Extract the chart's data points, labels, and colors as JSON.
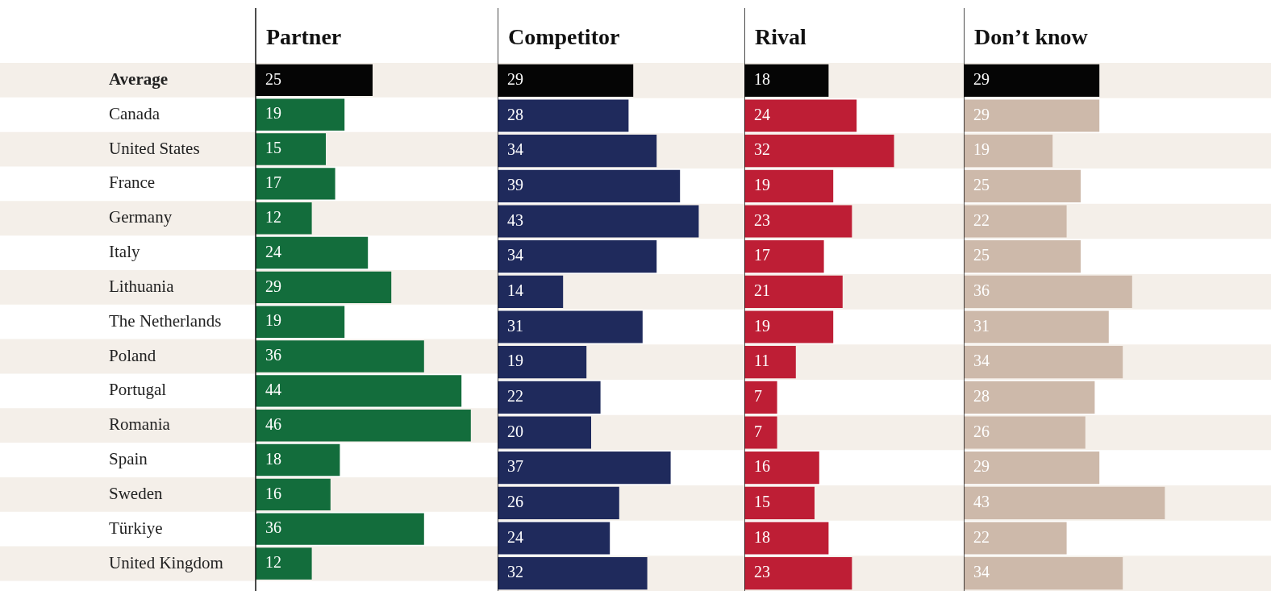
{
  "chart_data": [
    {
      "type": "bar",
      "orientation": "horizontal",
      "title": "Partner",
      "tick_labels": "y",
      "data_labels": true,
      "categories": [
        "Average",
        "Canada",
        "United States",
        "France",
        "Germany",
        "Italy",
        "Lithuania",
        "The Netherlands",
        "Poland",
        "Portugal",
        "Romania",
        "Spain",
        "Sweden",
        "Türkiye",
        "United Kingdom"
      ],
      "values": [
        25,
        19,
        15,
        17,
        12,
        24,
        29,
        19,
        36,
        44,
        46,
        18,
        16,
        36,
        12
      ],
      "colors": [
        "#050505",
        "#136d3c",
        "#136d3c",
        "#136d3c",
        "#136d3c",
        "#136d3c",
        "#136d3c",
        "#136d3c",
        "#136d3c",
        "#136d3c",
        "#136d3c",
        "#136d3c",
        "#136d3c",
        "#136d3c",
        "#136d3c"
      ]
    },
    {
      "type": "bar",
      "orientation": "horizontal",
      "title": "Competitor",
      "tick_labels": false,
      "data_labels": true,
      "categories": [
        null,
        null,
        null,
        null,
        null,
        null,
        null,
        null,
        null,
        null,
        null,
        null,
        null,
        null,
        null
      ],
      "values": [
        29,
        28,
        34,
        39,
        43,
        34,
        14,
        31,
        19,
        22,
        20,
        37,
        26,
        24,
        32
      ],
      "colors": [
        "#050505",
        "#1f2a5c",
        "#1f2a5c",
        "#1f2a5c",
        "#1f2a5c",
        "#1f2a5c",
        "#1f2a5c",
        "#1f2a5c",
        "#1f2a5c",
        "#1f2a5c",
        "#1f2a5c",
        "#1f2a5c",
        "#1f2a5c",
        "#1f2a5c",
        "#1f2a5c"
      ]
    },
    {
      "type": "bar",
      "orientation": "horizontal",
      "title": "Rival",
      "tick_labels": false,
      "data_labels": true,
      "categories": [
        null,
        null,
        null,
        null,
        null,
        null,
        null,
        null,
        null,
        null,
        null,
        null,
        null,
        null,
        null
      ],
      "values": [
        18,
        24,
        32,
        19,
        23,
        17,
        21,
        19,
        11,
        7,
        7,
        16,
        15,
        18,
        23
      ],
      "colors": [
        "#050505",
        "#be1e35",
        "#be1e35",
        "#be1e35",
        "#be1e35",
        "#be1e35",
        "#be1e35",
        "#be1e35",
        "#be1e35",
        "#be1e35",
        "#be1e35",
        "#be1e35",
        "#be1e35",
        "#be1e35",
        "#be1e35"
      ]
    },
    {
      "type": "bar",
      "orientation": "horizontal",
      "title": "Don’t know",
      "tick_labels": false,
      "data_labels": true,
      "categories": [
        null,
        null,
        null,
        null,
        null,
        null,
        null,
        null,
        null,
        null,
        null,
        null,
        null,
        null,
        null
      ],
      "values": [
        29,
        29,
        19,
        25,
        22,
        25,
        36,
        31,
        34,
        28,
        26,
        29,
        43,
        22,
        34
      ],
      "colors": [
        "#050505",
        "#cdb9aa",
        "#cdb9aa",
        "#cdb9aa",
        "#cdb9aa",
        "#cdb9aa",
        "#cdb9aa",
        "#cdb9aa",
        "#cdb9aa",
        "#cdb9aa",
        "#cdb9aa",
        "#cdb9aa",
        "#cdb9aa",
        "#cdb9aa",
        "#cdb9aa"
      ]
    }
  ]
}
